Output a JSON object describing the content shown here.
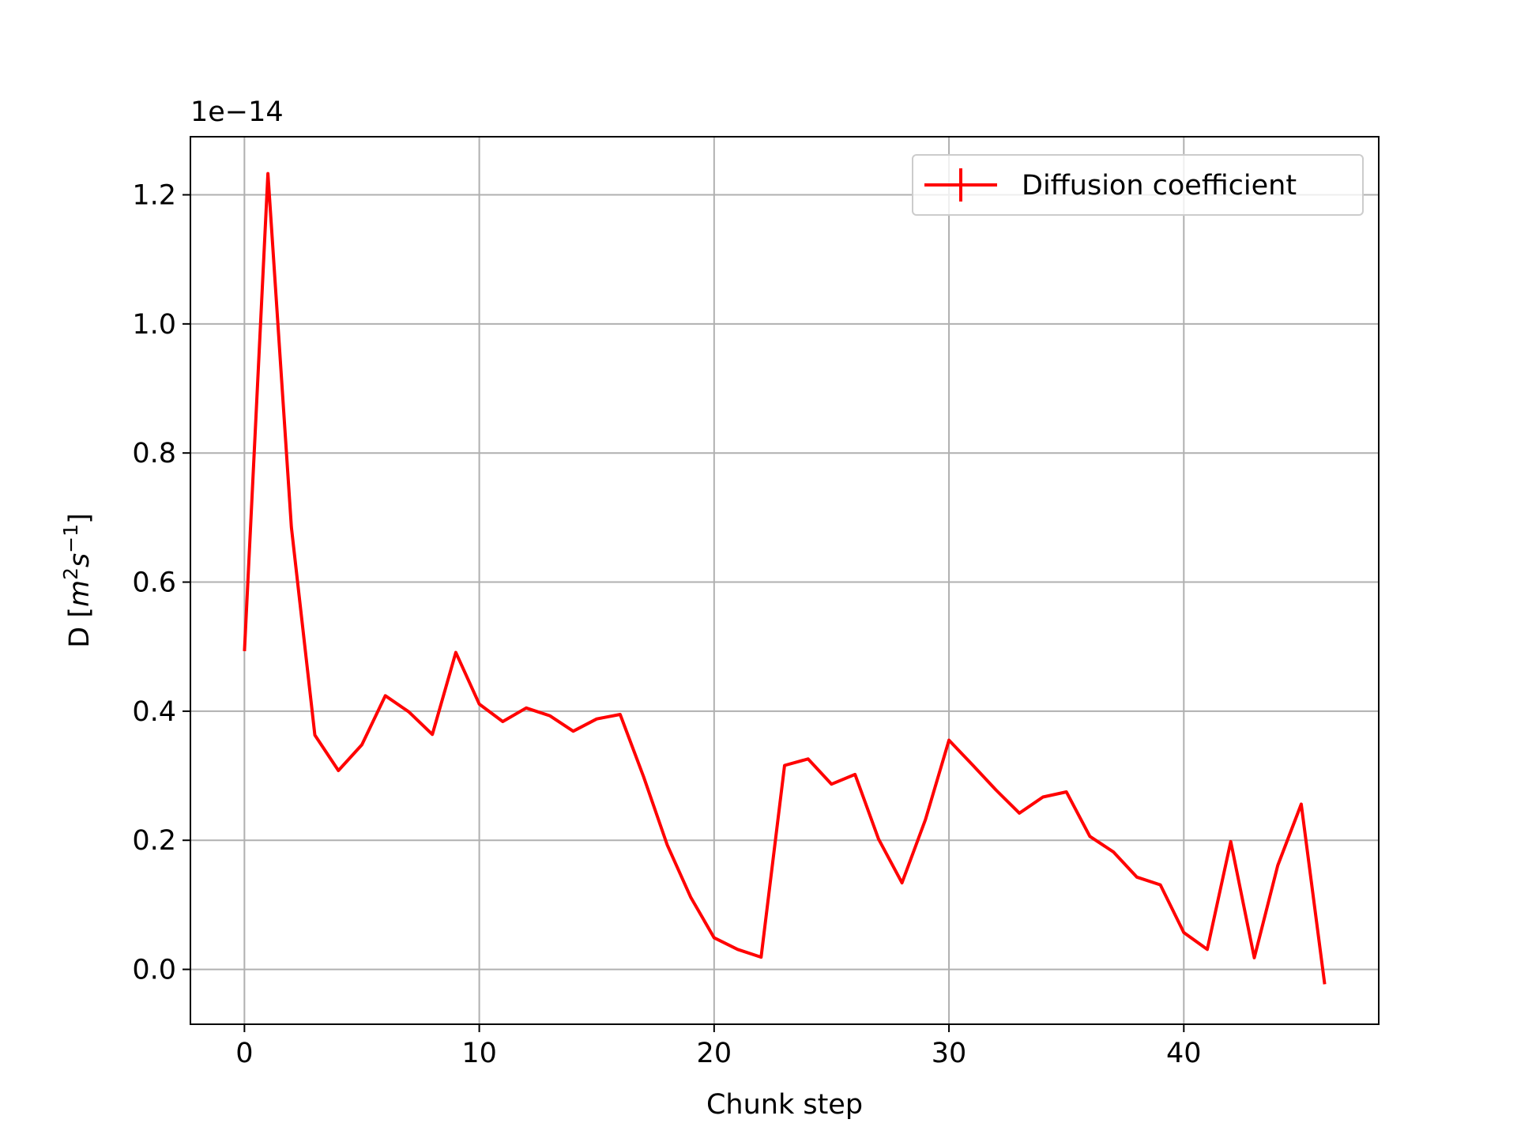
{
  "chart_data": {
    "type": "line",
    "title": "",
    "xlabel": "Chunk step",
    "ylabel_prefix": "D [",
    "ylabel_math": [
      {
        "text": "m",
        "italic": true
      },
      {
        "text": "2",
        "sup": true
      },
      {
        "text": "s",
        "italic": true
      },
      {
        "text": "−1",
        "sup": true
      }
    ],
    "ylabel_suffix": "]",
    "offset_text": "1e−14",
    "y_scale_factor": 1e-14,
    "xlim": [
      -2.3,
      48.3
    ],
    "ylim": [
      -0.085,
      1.29
    ],
    "xticks": [
      0,
      10,
      20,
      30,
      40
    ],
    "xtick_labels": [
      "0",
      "10",
      "20",
      "30",
      "40"
    ],
    "yticks": [
      0.0,
      0.2,
      0.4,
      0.6,
      0.8,
      1.0,
      1.2
    ],
    "ytick_labels": [
      "0.0",
      "0.2",
      "0.4",
      "0.6",
      "0.8",
      "1.0",
      "1.2"
    ],
    "grid": true,
    "legend_position": "top-right",
    "series": [
      {
        "name": "Diffusion coefficient",
        "color": "#ff0000",
        "x": [
          0,
          1,
          2,
          3,
          4,
          5,
          6,
          7,
          8,
          9,
          10,
          11,
          12,
          13,
          14,
          15,
          16,
          17,
          18,
          19,
          20,
          21,
          22,
          23,
          24,
          25,
          26,
          27,
          28,
          29,
          30,
          31,
          32,
          33,
          34,
          35,
          36,
          37,
          38,
          39,
          40,
          41,
          42,
          43,
          44,
          45,
          46
        ],
        "y": [
          0.493,
          1.233,
          0.685,
          0.363,
          0.308,
          0.348,
          0.424,
          0.399,
          0.364,
          0.491,
          0.411,
          0.384,
          0.405,
          0.393,
          0.369,
          0.388,
          0.395,
          0.298,
          0.193,
          0.112,
          0.049,
          0.031,
          0.019,
          0.316,
          0.326,
          0.287,
          0.302,
          0.202,
          0.134,
          0.232,
          0.355,
          0.317,
          0.278,
          0.242,
          0.267,
          0.275,
          0.206,
          0.182,
          0.143,
          0.131,
          0.057,
          0.031,
          0.198,
          0.018,
          0.161,
          0.256,
          -0.023
        ]
      }
    ]
  }
}
